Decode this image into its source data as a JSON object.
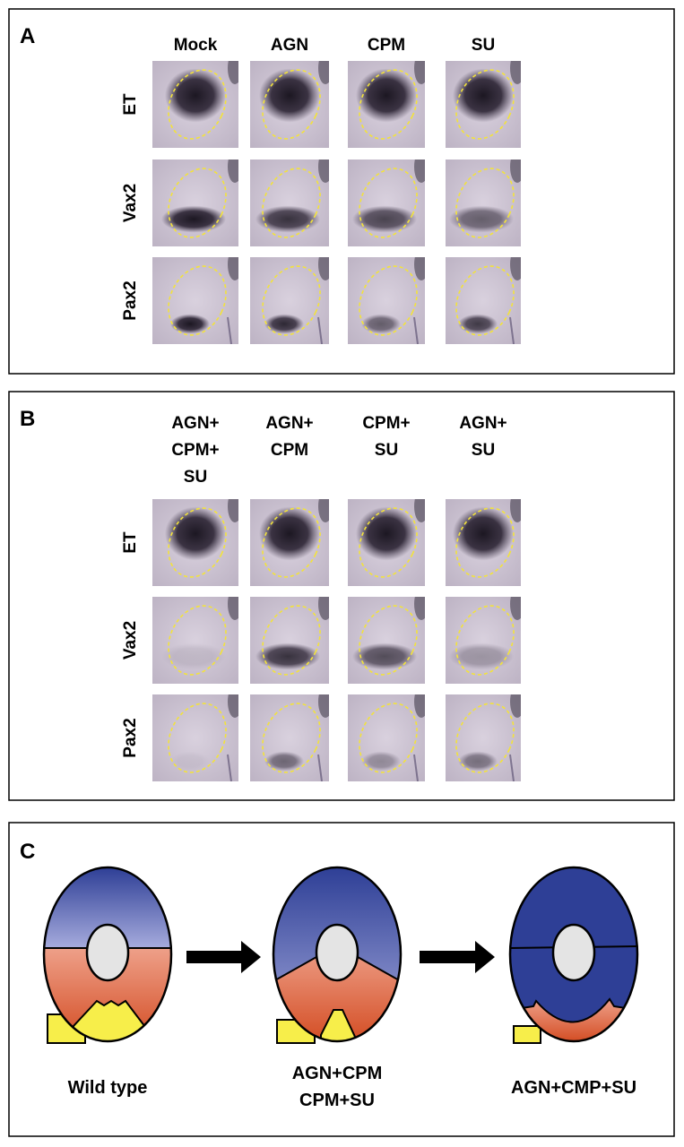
{
  "panel_a": {
    "letter": "A",
    "columns": [
      "Mock",
      "AGN",
      "CPM",
      "SU"
    ],
    "rows": [
      "ET",
      "Vax2",
      "Pax2"
    ]
  },
  "panel_b": {
    "letter": "B",
    "columns": [
      [
        "AGN+",
        "CPM+",
        "SU"
      ],
      [
        "AGN+",
        "CPM"
      ],
      [
        "CPM+",
        "SU"
      ],
      [
        "AGN+",
        "SU"
      ]
    ],
    "rows": [
      "ET",
      "Vax2",
      "Pax2"
    ]
  },
  "panel_c": {
    "letter": "C",
    "labels": [
      [
        "Wild type"
      ],
      [
        "AGN+CPM",
        "CPM+SU"
      ],
      [
        "AGN+CMP+SU"
      ]
    ]
  },
  "colors": {
    "dorsal_blue": "#2e3f96",
    "light_blue": "#9aa0d6",
    "ventral_orange": "#e8917a",
    "deep_orange": "#d9572c",
    "yellow": "#f7ee4a",
    "lens_gray": "#e4e4e4",
    "outline_yellow": "#f3e33a"
  }
}
